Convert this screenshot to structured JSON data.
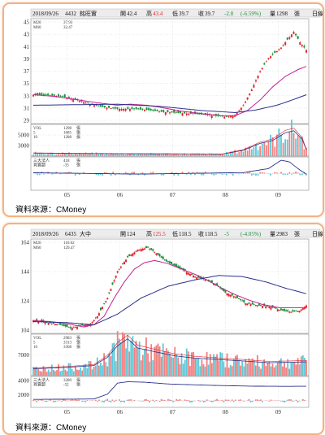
{
  "source_label": "資料來源：CMoney",
  "colors": {
    "up": "#e0242b",
    "down": "#1a8f3a",
    "ma_short": "#c8208f",
    "ma_long": "#2a2f8c",
    "vol_up": "#f08080",
    "vol_down": "#5ec8d8",
    "grid": "#c8c8c8",
    "header_bg": "#ececec"
  },
  "charts": [
    {
      "header": {
        "date": "2018/09/26",
        "code": "4432",
        "name": "銘旺實",
        "open_label": "開",
        "open": "42.4",
        "high_label": "高",
        "high": "43.4",
        "low_label": "低",
        "low": "39.7",
        "close_label": "收",
        "close": "39.7",
        "change": "-2.8",
        "change_pct": "(-6.59%)",
        "volume_label": "量",
        "volume": "1298",
        "volume_unit": "張",
        "period": "日線"
      },
      "legend": {
        "ma_short_label": "M20",
        "ma_short_value": "37.93",
        "ma_long_label": "M60",
        "ma_long_value": "32.47"
      },
      "price_ticks": [
        "45",
        "43",
        "41",
        "39",
        "37",
        "35",
        "33",
        "31",
        "29"
      ],
      "volume_ticks": [
        "5000",
        "3000"
      ],
      "volume_legend": [
        {
          "label": "VOL",
          "value": "1298"
        },
        {
          "label": "5",
          "value": "1685"
        },
        {
          "label": "10",
          "value": "1288"
        }
      ],
      "inst_legend": [
        {
          "label": "三大法人",
          "value": "418"
        },
        {
          "label": "買賣超",
          "value": "-33"
        }
      ],
      "unit": "張",
      "months": [
        "05",
        "06",
        "07",
        "08",
        "09"
      ]
    },
    {
      "header": {
        "date": "2018/09/26",
        "code": "6435",
        "name": "大中",
        "open_label": "開",
        "open": "124",
        "high_label": "高",
        "high": "125.5",
        "low_label": "低",
        "low": "118.5",
        "close_label": "收",
        "close": "118.5",
        "change": "-5",
        "change_pct": "(-4.05%)",
        "volume_label": "量",
        "volume": "2983",
        "volume_unit": "張",
        "period": "日線"
      },
      "legend": {
        "ma_short_label": "M20",
        "ma_short_value": "116.02",
        "ma_long_label": "M60",
        "ma_long_value": "129.47"
      },
      "price_ticks": [
        "164",
        "144",
        "124",
        "104"
      ],
      "volume_ticks": [
        "7000"
      ],
      "volume_legend": [
        {
          "label": "VOL",
          "value": "2983"
        },
        {
          "label": "5",
          "value": "3313"
        },
        {
          "label": "10",
          "value": "3368"
        }
      ],
      "inst_legend": [
        {
          "label": "三大法人",
          "value": "3280"
        },
        {
          "label": "買賣超",
          "value": "-52"
        }
      ],
      "inst_ticks": [
        "4000",
        "2000"
      ],
      "unit": "張",
      "months": [
        "05",
        "06",
        "07",
        "08",
        "09"
      ]
    }
  ],
  "chart_data": [
    {
      "type": "candlestick",
      "stock": "4432 銘旺實",
      "ylim": [
        27,
        47
      ],
      "price_trend": [
        [
          0,
          32.5
        ],
        [
          8,
          32.4
        ],
        [
          16,
          32.0
        ],
        [
          24,
          31.1
        ],
        [
          32,
          30.2
        ],
        [
          40,
          29.8
        ],
        [
          46,
          29.8
        ],
        [
          54,
          29.6
        ],
        [
          62,
          29.2
        ],
        [
          70,
          29.0
        ],
        [
          78,
          28.8
        ],
        [
          86,
          28.5
        ],
        [
          92,
          28.3
        ],
        [
          96,
          28.6
        ],
        [
          100,
          30.5
        ],
        [
          104,
          33.5
        ],
        [
          108,
          37.0
        ],
        [
          112,
          39.5
        ],
        [
          115,
          40.5
        ],
        [
          118,
          41.5
        ],
        [
          121,
          43.0
        ],
        [
          124,
          44.5
        ],
        [
          127,
          42.5
        ],
        [
          130,
          41.0
        ]
      ],
      "ma20_trend": [
        [
          0,
          32.5
        ],
        [
          10,
          32.2
        ],
        [
          20,
          31.6
        ],
        [
          30,
          31.0
        ],
        [
          40,
          30.5
        ],
        [
          46,
          30.7
        ],
        [
          54,
          30.5
        ],
        [
          62,
          30.0
        ],
        [
          70,
          29.4
        ],
        [
          80,
          28.9
        ],
        [
          90,
          28.5
        ],
        [
          96,
          28.5
        ],
        [
          102,
          29.5
        ],
        [
          108,
          31.5
        ],
        [
          114,
          34.0
        ],
        [
          120,
          36.0
        ],
        [
          126,
          37.3
        ],
        [
          130,
          37.9
        ]
      ],
      "ma60_trend": [
        [
          0,
          30.5
        ],
        [
          20,
          30.6
        ],
        [
          40,
          30.7
        ],
        [
          60,
          30.3
        ],
        [
          80,
          29.5
        ],
        [
          96,
          29.1
        ],
        [
          106,
          29.6
        ],
        [
          116,
          30.5
        ],
        [
          124,
          31.6
        ],
        [
          130,
          32.5
        ]
      ],
      "volume_ylim": [
        0,
        6500
      ],
      "volume_trend": [
        [
          0,
          600
        ],
        [
          30,
          500
        ],
        [
          60,
          450
        ],
        [
          90,
          400
        ],
        [
          100,
          1200
        ],
        [
          108,
          2600
        ],
        [
          114,
          3200
        ],
        [
          120,
          4800
        ],
        [
          124,
          5200
        ],
        [
          128,
          3500
        ],
        [
          130,
          1298
        ]
      ],
      "inst_ylim": [
        -1000,
        1000
      ],
      "inst_trend": [
        [
          0,
          50
        ],
        [
          50,
          -30
        ],
        [
          100,
          60
        ],
        [
          112,
          300
        ],
        [
          118,
          800
        ],
        [
          122,
          700
        ],
        [
          126,
          300
        ],
        [
          130,
          -33
        ]
      ]
    },
    {
      "type": "candlestick",
      "stock": "6435 大中",
      "ylim": [
        92,
        180
      ],
      "price_trend": [
        [
          0,
          104
        ],
        [
          8,
          102
        ],
        [
          16,
          100
        ],
        [
          22,
          97
        ],
        [
          28,
          99
        ],
        [
          34,
          101
        ],
        [
          38,
          108
        ],
        [
          44,
          125
        ],
        [
          50,
          150
        ],
        [
          56,
          163
        ],
        [
          62,
          170
        ],
        [
          68,
          172
        ],
        [
          72,
          168
        ],
        [
          78,
          160
        ],
        [
          84,
          155
        ],
        [
          90,
          150
        ],
        [
          96,
          145
        ],
        [
          102,
          142
        ],
        [
          108,
          138
        ],
        [
          114,
          130
        ],
        [
          120,
          126
        ],
        [
          126,
          120
        ],
        [
          134,
          118
        ],
        [
          140,
          117
        ],
        [
          146,
          114
        ],
        [
          152,
          112
        ],
        [
          158,
          113
        ],
        [
          162,
          118
        ]
      ],
      "ma20_trend": [
        [
          0,
          104
        ],
        [
          10,
          103
        ],
        [
          20,
          101
        ],
        [
          30,
          98
        ],
        [
          36,
          100
        ],
        [
          42,
          108
        ],
        [
          48,
          125
        ],
        [
          54,
          140
        ],
        [
          60,
          152
        ],
        [
          66,
          158
        ],
        [
          72,
          160
        ],
        [
          80,
          157
        ],
        [
          88,
          152
        ],
        [
          96,
          147
        ],
        [
          104,
          141
        ],
        [
          112,
          134
        ],
        [
          120,
          128
        ],
        [
          128,
          123
        ],
        [
          136,
          119
        ],
        [
          146,
          116
        ],
        [
          156,
          116
        ],
        [
          162,
          116
        ]
      ],
      "ma60_trend": [
        [
          0,
          103
        ],
        [
          20,
          102
        ],
        [
          36,
          100
        ],
        [
          50,
          110
        ],
        [
          64,
          125
        ],
        [
          80,
          136
        ],
        [
          96,
          142
        ],
        [
          110,
          146
        ],
        [
          124,
          145
        ],
        [
          138,
          140
        ],
        [
          150,
          134
        ],
        [
          162,
          129
        ]
      ],
      "volume_ylim": [
        0,
        9000
      ],
      "volume_trend": [
        [
          0,
          1500
        ],
        [
          20,
          1800
        ],
        [
          36,
          2200
        ],
        [
          44,
          4000
        ],
        [
          50,
          6500
        ],
        [
          56,
          8000
        ],
        [
          62,
          6000
        ],
        [
          72,
          5200
        ],
        [
          84,
          4300
        ],
        [
          96,
          3800
        ],
        [
          110,
          3500
        ],
        [
          124,
          3200
        ],
        [
          140,
          2800
        ],
        [
          162,
          2983
        ]
      ],
      "inst_ylim": [
        -1500,
        5500
      ],
      "inst_trend": [
        [
          0,
          300
        ],
        [
          36,
          400
        ],
        [
          44,
          1500
        ],
        [
          50,
          4000
        ],
        [
          56,
          4300
        ],
        [
          66,
          4200
        ],
        [
          80,
          3800
        ],
        [
          96,
          3600
        ],
        [
          110,
          3450
        ],
        [
          130,
          3300
        ],
        [
          150,
          3250
        ],
        [
          162,
          3280
        ]
      ]
    }
  ]
}
